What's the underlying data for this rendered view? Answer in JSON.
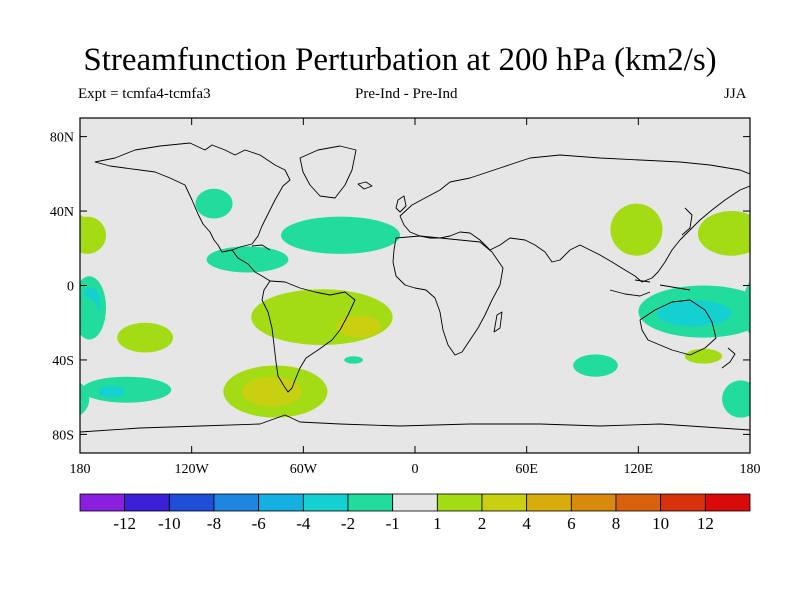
{
  "chart_data": {
    "type": "contour-map",
    "title": "Streamfunction Perturbation at 200 hPa (km2/s)",
    "subtitle_left": "Expt = tcmfa4-tcmfa3",
    "subtitle_center": "Pre-Ind - Pre-Ind",
    "subtitle_right": "JJA",
    "xlim": [
      -180,
      180
    ],
    "ylim": [
      -90,
      90
    ],
    "x_ticks": [
      {
        "value": -180,
        "label": "180"
      },
      {
        "value": -120,
        "label": "120W"
      },
      {
        "value": -60,
        "label": "60W"
      },
      {
        "value": 0,
        "label": "0"
      },
      {
        "value": 60,
        "label": "60E"
      },
      {
        "value": 120,
        "label": "120E"
      },
      {
        "value": 180,
        "label": "180"
      }
    ],
    "y_ticks": [
      {
        "value": 80,
        "label": "80N"
      },
      {
        "value": 40,
        "label": "40N"
      },
      {
        "value": 0,
        "label": "0"
      },
      {
        "value": -40,
        "label": "40S"
      },
      {
        "value": -80,
        "label": "80S"
      }
    ],
    "levels": [
      -12,
      -10,
      -8,
      -6,
      -4,
      -2,
      -1,
      1,
      2,
      4,
      6,
      8,
      10,
      12
    ],
    "colors": [
      "#8a1fe0",
      "#3b20d8",
      "#1f4ed8",
      "#1e86e0",
      "#14b0e0",
      "#14d0d0",
      "#22dc9e",
      "#e6e6e6",
      "#a3dc14",
      "#c8d010",
      "#d8ac0c",
      "#d88a0c",
      "#d8620c",
      "#d8320c",
      "#d80a0a"
    ],
    "regions": [
      {
        "lon": -108,
        "lat": 44,
        "rlon": 10,
        "rlat": 8,
        "value": -1.5
      },
      {
        "lon": -40,
        "lat": 27,
        "rlon": 32,
        "rlat": 10,
        "value": -1.5
      },
      {
        "lon": -90,
        "lat": 14,
        "rlon": 22,
        "rlat": 7,
        "value": -1.5
      },
      {
        "lon": -176,
        "lat": 27,
        "rlon": 10,
        "rlat": 10,
        "value": 1.5
      },
      {
        "lon": -175,
        "lat": -12,
        "rlon": 9,
        "rlat": 17,
        "value": -1.5
      },
      {
        "lon": -174,
        "lat": -10,
        "rlon": 5,
        "rlat": 9,
        "value": -3
      },
      {
        "lon": -145,
        "lat": -28,
        "rlon": 15,
        "rlat": 8,
        "value": 1.5
      },
      {
        "lon": -50,
        "lat": -17,
        "rlon": 38,
        "rlat": 15,
        "value": 1.5
      },
      {
        "lon": -30,
        "lat": -22,
        "rlon": 12,
        "rlat": 6,
        "value": 3
      },
      {
        "lon": -75,
        "lat": -57,
        "rlon": 28,
        "rlat": 14,
        "value": 1.5
      },
      {
        "lon": -77,
        "lat": -57,
        "rlon": 16,
        "rlat": 8,
        "value": 3
      },
      {
        "lon": -155,
        "lat": -56,
        "rlon": 24,
        "rlat": 7,
        "value": -1.5
      },
      {
        "lon": -163,
        "lat": -57,
        "rlon": 7,
        "rlat": 3,
        "value": -3
      },
      {
        "lon": -33,
        "lat": -40,
        "rlon": 5,
        "rlat": 2,
        "value": -1.5
      },
      {
        "lon": 97,
        "lat": -43,
        "rlon": 12,
        "rlat": 6,
        "value": -1.5
      },
      {
        "lon": 119,
        "lat": 30,
        "rlon": 14,
        "rlat": 14,
        "value": 1.5
      },
      {
        "lon": 170,
        "lat": 28,
        "rlon": 18,
        "rlat": 12,
        "value": 1.5
      },
      {
        "lon": 155,
        "lat": -14,
        "rlon": 35,
        "rlat": 14,
        "value": -1.5
      },
      {
        "lon": 150,
        "lat": -15,
        "rlon": 20,
        "rlat": 7,
        "value": -3
      },
      {
        "lon": 155,
        "lat": -38,
        "rlon": 10,
        "rlat": 4,
        "value": 1.5
      },
      {
        "lon": 175,
        "lat": -61,
        "rlon": 10,
        "rlat": 10,
        "value": -1.5
      }
    ]
  }
}
